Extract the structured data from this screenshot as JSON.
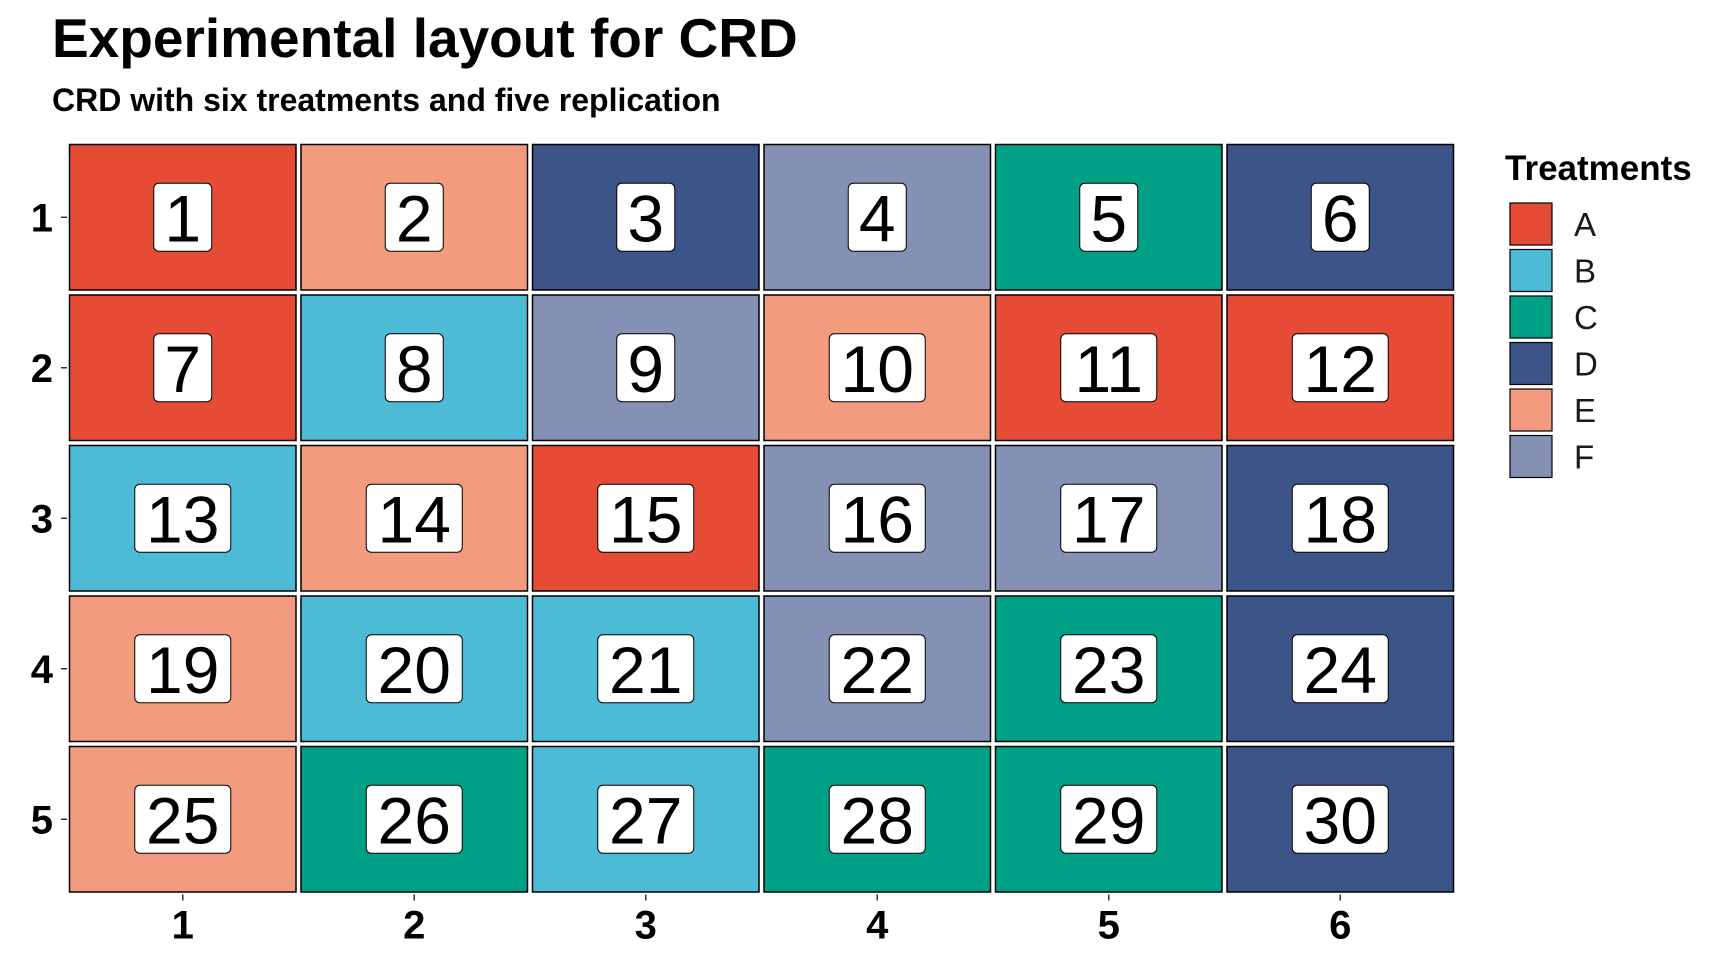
{
  "chart_data": {
    "type": "heatmap",
    "title": "Experimental layout for CRD",
    "subtitle": "CRD with six treatments and five replication",
    "xlabel": "",
    "ylabel": "",
    "x_ticks": [
      "1",
      "2",
      "3",
      "4",
      "5",
      "6"
    ],
    "y_ticks": [
      "1",
      "2",
      "3",
      "4",
      "5"
    ],
    "grid": false,
    "legend": {
      "title": "Treatments",
      "position": "right",
      "entries": [
        {
          "label": "A",
          "color": "#E64B35"
        },
        {
          "label": "B",
          "color": "#4DBBD5"
        },
        {
          "label": "C",
          "color": "#00A087"
        },
        {
          "label": "D",
          "color": "#3C5488"
        },
        {
          "label": "E",
          "color": "#F39B7F"
        },
        {
          "label": "F",
          "color": "#8491B4"
        }
      ]
    },
    "plots": [
      {
        "row": 1,
        "col": 1,
        "plot": "1",
        "treatment": "A"
      },
      {
        "row": 1,
        "col": 2,
        "plot": "2",
        "treatment": "E"
      },
      {
        "row": 1,
        "col": 3,
        "plot": "3",
        "treatment": "D"
      },
      {
        "row": 1,
        "col": 4,
        "plot": "4",
        "treatment": "F"
      },
      {
        "row": 1,
        "col": 5,
        "plot": "5",
        "treatment": "C"
      },
      {
        "row": 1,
        "col": 6,
        "plot": "6",
        "treatment": "D"
      },
      {
        "row": 2,
        "col": 1,
        "plot": "7",
        "treatment": "A"
      },
      {
        "row": 2,
        "col": 2,
        "plot": "8",
        "treatment": "B"
      },
      {
        "row": 2,
        "col": 3,
        "plot": "9",
        "treatment": "F"
      },
      {
        "row": 2,
        "col": 4,
        "plot": "10",
        "treatment": "E"
      },
      {
        "row": 2,
        "col": 5,
        "plot": "11",
        "treatment": "A"
      },
      {
        "row": 2,
        "col": 6,
        "plot": "12",
        "treatment": "A"
      },
      {
        "row": 3,
        "col": 1,
        "plot": "13",
        "treatment": "B"
      },
      {
        "row": 3,
        "col": 2,
        "plot": "14",
        "treatment": "E"
      },
      {
        "row": 3,
        "col": 3,
        "plot": "15",
        "treatment": "A"
      },
      {
        "row": 3,
        "col": 4,
        "plot": "16",
        "treatment": "F"
      },
      {
        "row": 3,
        "col": 5,
        "plot": "17",
        "treatment": "F"
      },
      {
        "row": 3,
        "col": 6,
        "plot": "18",
        "treatment": "D"
      },
      {
        "row": 4,
        "col": 1,
        "plot": "19",
        "treatment": "E"
      },
      {
        "row": 4,
        "col": 2,
        "plot": "20",
        "treatment": "B"
      },
      {
        "row": 4,
        "col": 3,
        "plot": "21",
        "treatment": "B"
      },
      {
        "row": 4,
        "col": 4,
        "plot": "22",
        "treatment": "F"
      },
      {
        "row": 4,
        "col": 5,
        "plot": "23",
        "treatment": "C"
      },
      {
        "row": 4,
        "col": 6,
        "plot": "24",
        "treatment": "D"
      },
      {
        "row": 5,
        "col": 1,
        "plot": "25",
        "treatment": "E"
      },
      {
        "row": 5,
        "col": 2,
        "plot": "26",
        "treatment": "C"
      },
      {
        "row": 5,
        "col": 3,
        "plot": "27",
        "treatment": "B"
      },
      {
        "row": 5,
        "col": 4,
        "plot": "28",
        "treatment": "C"
      },
      {
        "row": 5,
        "col": 5,
        "plot": "29",
        "treatment": "C"
      },
      {
        "row": 5,
        "col": 6,
        "plot": "30",
        "treatment": "D"
      }
    ]
  }
}
